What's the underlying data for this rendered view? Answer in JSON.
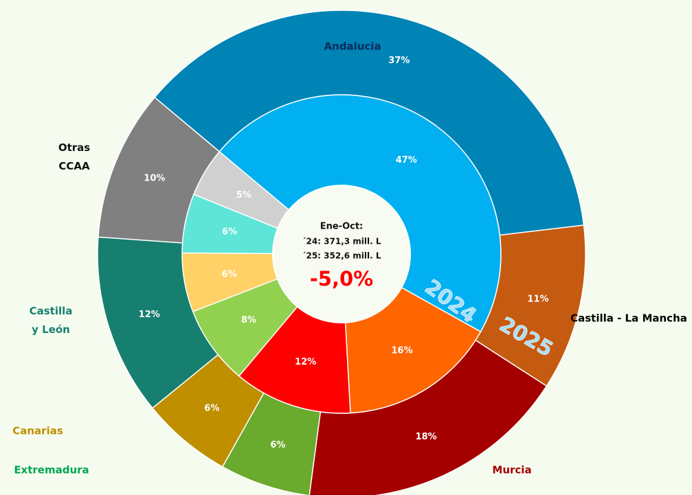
{
  "chart_data": {
    "type": "nested-donut",
    "categories": [
      "Andalucia",
      "Castilla - La Mancha",
      "Murcia",
      "Extremadura",
      "Canarias",
      "Castilla\ny León",
      "Otras\nCCAA"
    ],
    "label_colors": [
      "#0b2a5c",
      "#000000",
      "#a50000",
      "#00a651",
      "#bf8f00",
      "#177f6f",
      "#111111"
    ],
    "series": [
      {
        "name": "2024",
        "values": [
          47,
          16,
          12,
          8,
          6,
          6,
          5
        ],
        "value_labels": [
          "47%",
          "16%",
          "12%",
          "8%",
          "6%",
          "6%",
          "5%"
        ],
        "colors": [
          "#00b0f0",
          "#ff6600",
          "#ff0000",
          "#92d050",
          "#ffd166",
          "#5ee5d8",
          "#d0d0d0"
        ]
      },
      {
        "name": "2025",
        "values": [
          37,
          11,
          18,
          6,
          6,
          12,
          10
        ],
        "value_labels": [
          "37%",
          "11%",
          "18%",
          "6%",
          "6%",
          "12%",
          "10%"
        ],
        "colors": [
          "#0083b5",
          "#c55a11",
          "#a50000",
          "#6aaa2d",
          "#bf8f00",
          "#177f6f",
          "#808080"
        ]
      }
    ],
    "annotations": [
      "Ene-Oct:",
      "´24: 371,3 mill. L",
      "´25: 352,6 mill. L"
    ],
    "change": "-5,0%"
  }
}
